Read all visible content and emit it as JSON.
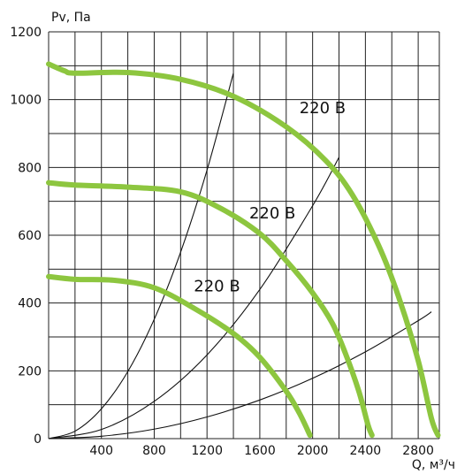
{
  "chart_data": {
    "type": "line",
    "xlabel": "Q, м³/ч",
    "ylabel": "Pv, Па",
    "xlim": [
      0,
      2960
    ],
    "ylim": [
      0,
      1200
    ],
    "x_ticks": [
      400,
      800,
      1200,
      1600,
      2000,
      2400,
      2800
    ],
    "y_ticks": [
      0,
      200,
      400,
      600,
      800,
      1000,
      1200
    ],
    "grid": true,
    "fan_color": "#8DC63F",
    "system_color": "#111111",
    "fan_curves": [
      {
        "label": "220 В",
        "label_at": [
          1900,
          960
        ],
        "points": [
          [
            0,
            1105
          ],
          [
            120,
            1085
          ],
          [
            200,
            1078
          ],
          [
            600,
            1080
          ],
          [
            1000,
            1060
          ],
          [
            1400,
            1010
          ],
          [
            1800,
            920
          ],
          [
            2100,
            820
          ],
          [
            2300,
            720
          ],
          [
            2500,
            570
          ],
          [
            2650,
            420
          ],
          [
            2800,
            230
          ],
          [
            2900,
            60
          ],
          [
            2950,
            10
          ]
        ]
      },
      {
        "label": "220 В",
        "label_at": [
          1520,
          650
        ],
        "points": [
          [
            0,
            755
          ],
          [
            200,
            748
          ],
          [
            600,
            742
          ],
          [
            1000,
            728
          ],
          [
            1300,
            680
          ],
          [
            1600,
            605
          ],
          [
            1800,
            525
          ],
          [
            2000,
            430
          ],
          [
            2150,
            340
          ],
          [
            2250,
            250
          ],
          [
            2350,
            140
          ],
          [
            2420,
            40
          ],
          [
            2450,
            10
          ]
        ]
      },
      {
        "label": "220 В",
        "label_at": [
          1100,
          435
        ],
        "points": [
          [
            0,
            478
          ],
          [
            200,
            470
          ],
          [
            500,
            467
          ],
          [
            800,
            445
          ],
          [
            1100,
            385
          ],
          [
            1400,
            310
          ],
          [
            1600,
            240
          ],
          [
            1800,
            140
          ],
          [
            1900,
            75
          ],
          [
            1980,
            10
          ]
        ]
      }
    ],
    "system_curves": [
      {
        "points": [
          [
            0,
            0
          ],
          [
            200,
            22
          ],
          [
            400,
            88
          ],
          [
            600,
            198
          ],
          [
            800,
            352
          ],
          [
            1000,
            550
          ],
          [
            1200,
            792
          ],
          [
            1400,
            1078
          ]
        ]
      },
      {
        "points": [
          [
            0,
            0
          ],
          [
            400,
            27
          ],
          [
            800,
            110
          ],
          [
            1200,
            247
          ],
          [
            1600,
            440
          ],
          [
            2000,
            687
          ],
          [
            2200,
            830
          ]
        ]
      },
      {
        "points": [
          [
            0,
            0
          ],
          [
            400,
            7
          ],
          [
            800,
            28
          ],
          [
            1200,
            64
          ],
          [
            1600,
            114
          ],
          [
            2000,
            178
          ],
          [
            2400,
            256
          ],
          [
            2800,
            348
          ],
          [
            2900,
            374
          ]
        ]
      }
    ]
  }
}
